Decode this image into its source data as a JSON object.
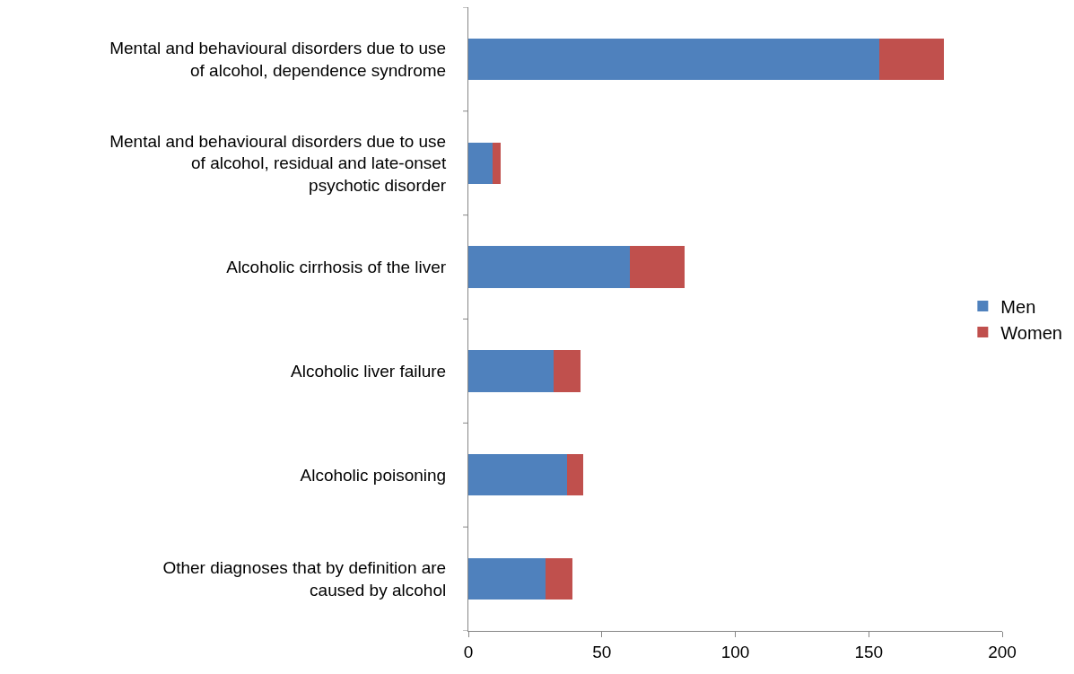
{
  "chart_data": {
    "type": "bar",
    "orientation": "horizontal",
    "stacked": true,
    "categories": [
      "Mental and behavioural disorders due to use of alcohol, dependence syndrome",
      "Mental and behavioural disorders due to use of alcohol, residual and late-onset psychotic disorder",
      "Alcoholic cirrhosis of the liver",
      "Alcoholic liver failure",
      "Alcoholic poisoning",
      "Other diagnoses that by definition are caused by alcohol"
    ],
    "series": [
      {
        "name": "Men",
        "color": "#4f81bd",
        "values": [
          154,
          9,
          60.5,
          32,
          37,
          29
        ]
      },
      {
        "name": "Women",
        "color": "#c0504d",
        "values": [
          24,
          3,
          20.5,
          10,
          6,
          10
        ]
      }
    ],
    "xlim": [
      0,
      200
    ],
    "xticks": [
      0,
      50,
      100,
      150,
      200
    ],
    "legend": "right"
  }
}
